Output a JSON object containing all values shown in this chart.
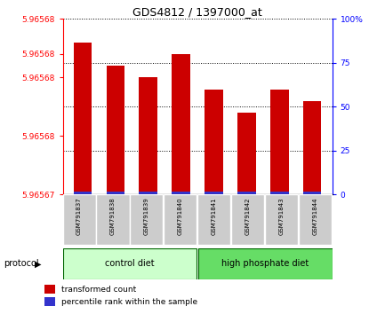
{
  "title": "GDS4812 / 1397000_at",
  "samples": [
    "GSM791837",
    "GSM791838",
    "GSM791839",
    "GSM791840",
    "GSM791841",
    "GSM791842",
    "GSM791843",
    "GSM791844"
  ],
  "red_values": [
    5.965683,
    5.965681,
    5.96568,
    5.965682,
    5.965679,
    5.965677,
    5.965679,
    5.965678
  ],
  "blue_values": [
    2,
    2,
    2,
    2,
    2,
    2,
    2,
    2
  ],
  "ymin": 5.96567,
  "ymax": 5.965685,
  "ytick_left": [
    5.96567,
    5.965675,
    5.96568,
    5.965682,
    5.965685
  ],
  "ytick_right": [
    0,
    25,
    50,
    75,
    100
  ],
  "red_color": "#cc0000",
  "blue_color": "#3333cc",
  "control_diet_color": "#ccffcc",
  "high_phosphate_color": "#66dd66",
  "sample_bg_color": "#cccccc",
  "legend_red_label": "transformed count",
  "legend_blue_label": "percentile rank within the sample",
  "protocol_label": "protocol",
  "control_label": "control diet",
  "high_phosphate_label": "high phosphate diet"
}
